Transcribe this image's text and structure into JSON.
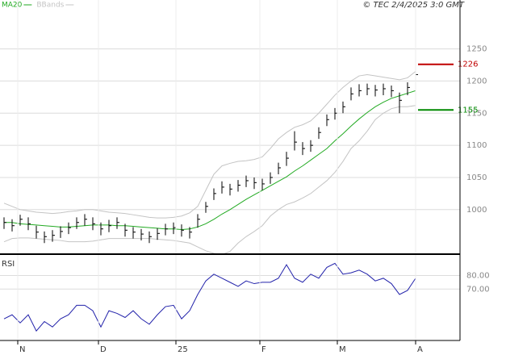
{
  "chart_data": [
    {
      "type": "ohlc",
      "title": "© TEC 2/4/2025 3:0 GMT",
      "color": "#000000",
      "high": [
        988,
        985,
        992,
        988,
        975,
        966,
        968,
        974,
        980,
        988,
        993,
        988,
        980,
        984,
        988,
        978,
        973,
        970,
        966,
        971,
        978,
        980,
        977,
        973,
        993,
        1012,
        1033,
        1044,
        1040,
        1046,
        1053,
        1050,
        1048,
        1058,
        1073,
        1090,
        1122,
        1105,
        1108,
        1128,
        1148,
        1158,
        1168,
        1190,
        1195,
        1196,
        1194,
        1196,
        1193,
        1182,
        1198,
        1216
      ],
      "low": [
        970,
        966,
        975,
        968,
        955,
        948,
        950,
        956,
        962,
        970,
        975,
        968,
        960,
        965,
        970,
        958,
        955,
        952,
        948,
        953,
        960,
        962,
        958,
        955,
        972,
        995,
        1015,
        1025,
        1022,
        1028,
        1035,
        1032,
        1030,
        1040,
        1055,
        1068,
        1092,
        1085,
        1090,
        1110,
        1130,
        1140,
        1150,
        1170,
        1176,
        1178,
        1176,
        1178,
        1175,
        1150,
        1178,
        1198
      ],
      "close": [
        980,
        975,
        985,
        978,
        965,
        958,
        960,
        966,
        972,
        980,
        985,
        978,
        970,
        975,
        980,
        968,
        965,
        962,
        958,
        963,
        970,
        972,
        968,
        965,
        985,
        1005,
        1025,
        1035,
        1032,
        1038,
        1045,
        1042,
        1040,
        1050,
        1065,
        1080,
        1105,
        1095,
        1100,
        1120,
        1140,
        1150,
        1160,
        1180,
        1185,
        1188,
        1186,
        1188,
        1185,
        1170,
        1190,
        1210
      ],
      "series": [
        {
          "name": "MA20",
          "color": "#22aa22",
          "values": [
            980,
            980,
            978,
            977,
            976,
            975,
            974,
            973,
            973,
            974,
            975,
            976,
            976,
            976,
            975,
            975,
            974,
            973,
            972,
            971,
            970,
            970,
            969,
            970,
            973,
            978,
            985,
            993,
            1000,
            1008,
            1016,
            1023,
            1030,
            1037,
            1044,
            1051,
            1060,
            1068,
            1077,
            1086,
            1095,
            1107,
            1118,
            1130,
            1141,
            1151,
            1160,
            1167,
            1173,
            1177,
            1181,
            1185
          ]
        },
        {
          "name": "BBands",
          "color": "#c4c4c4",
          "upper": [
            1010,
            1005,
            1000,
            998,
            996,
            995,
            994,
            995,
            997,
            998,
            1000,
            1000,
            998,
            996,
            995,
            994,
            992,
            990,
            988,
            987,
            987,
            988,
            990,
            995,
            1005,
            1030,
            1055,
            1068,
            1072,
            1075,
            1076,
            1078,
            1082,
            1095,
            1110,
            1120,
            1128,
            1132,
            1138,
            1150,
            1164,
            1178,
            1190,
            1200,
            1208,
            1210,
            1208,
            1206,
            1204,
            1202,
            1205,
            1215
          ],
          "lower": [
            950,
            955,
            956,
            956,
            955,
            954,
            953,
            952,
            950,
            950,
            950,
            951,
            953,
            955,
            955,
            955,
            955,
            955,
            955,
            954,
            953,
            952,
            950,
            948,
            942,
            936,
            932,
            930,
            935,
            948,
            958,
            966,
            975,
            990,
            1000,
            1008,
            1012,
            1018,
            1025,
            1035,
            1045,
            1058,
            1075,
            1095,
            1107,
            1122,
            1140,
            1150,
            1157,
            1160,
            1160,
            1162
          ]
        }
      ],
      "annotations": [
        {
          "value": 1226,
          "label": "1226",
          "color": "#c00000"
        },
        {
          "value": 1155,
          "label": "1155",
          "color": "#008800"
        }
      ],
      "xlim": [
        -0.5,
        56.5
      ],
      "ylim": [
        932,
        1326
      ],
      "yticks": [
        1000,
        1050,
        1100,
        1150,
        1200,
        1250
      ],
      "grid": true
    },
    {
      "type": "line",
      "title": "RSI",
      "color": "#2222aa",
      "values": [
        48,
        51,
        45,
        51,
        39,
        46,
        42,
        48,
        51,
        58,
        58,
        54,
        42,
        54,
        52,
        49,
        54,
        48,
        44,
        51,
        57,
        58,
        48,
        54,
        66,
        76,
        81,
        78,
        75,
        72,
        76,
        74,
        75,
        75,
        78,
        88,
        78,
        75,
        81,
        78,
        86,
        89,
        81,
        82,
        84,
        81,
        76,
        78,
        74,
        66,
        69,
        78
      ],
      "xlim": [
        -0.5,
        56.5
      ],
      "ylim": [
        32,
        94
      ],
      "yticks": [
        {
          "value": 70,
          "label": "70.00"
        },
        {
          "value": 80,
          "label": "80.00"
        }
      ],
      "xticks": [
        {
          "value": 1.7,
          "label": "N"
        },
        {
          "value": 11.7,
          "label": "D"
        },
        {
          "value": 21.3,
          "label": "25"
        },
        {
          "value": 31.7,
          "label": "F"
        },
        {
          "value": 41.3,
          "label": "M"
        },
        {
          "value": 51,
          "label": "A"
        }
      ],
      "grid": true
    }
  ]
}
